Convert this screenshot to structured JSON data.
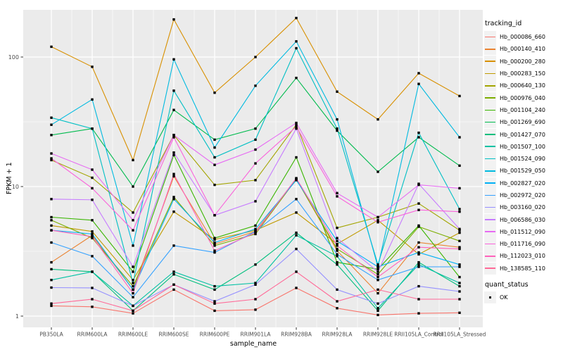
{
  "chart_data": {
    "type": "line",
    "xlabel": "sample_name",
    "ylabel": "FPKM + 1",
    "y_scale": "log10",
    "y_ticks": [
      1,
      10,
      100
    ],
    "y_tick_labels": [
      "1",
      "10",
      "100"
    ],
    "y_minor_ticks": [
      3.162,
      31.62
    ],
    "legend_title": "tracking_id",
    "point_legend": {
      "title": "quant_status",
      "items": [
        "OK"
      ],
      "marker": "black-square"
    },
    "panel_bg": "#EBEBEB",
    "grid_color": "#FFFFFF",
    "tick_label_color": "#4D4D4D",
    "tick_color": "#333333",
    "point_color": "#000000",
    "categories": [
      "PB350LA",
      "RRIM600LA",
      "RRIM600LE",
      "RRIM600SE",
      "RRIM600PE",
      "RRIM901LA",
      "RRIM928BA",
      "RRIM928LA",
      "RRIM928LE",
      "RRII105LA_Control",
      "RRII105LA_Stressed"
    ],
    "series": [
      {
        "name": "Hb_000086_660",
        "color": "#F8766D",
        "values": [
          1.2,
          1.18,
          1.05,
          1.6,
          1.1,
          1.12,
          1.65,
          1.15,
          1.02,
          1.05,
          1.06
        ]
      },
      {
        "name": "Hb_000140_410",
        "color": "#EA8331",
        "values": [
          2.6,
          4.2,
          1.6,
          12.0,
          3.6,
          4.5,
          11.5,
          3.2,
          1.5,
          3.7,
          3.4
        ]
      },
      {
        "name": "Hb_000200_280",
        "color": "#D89000",
        "values": [
          120,
          84,
          16,
          195,
          53,
          100,
          200,
          54,
          33,
          75,
          50
        ]
      },
      {
        "name": "Hb_000283_150",
        "color": "#C09B00",
        "values": [
          5.0,
          4.5,
          1.9,
          6.4,
          3.9,
          4.6,
          6.3,
          3.6,
          5.5,
          3.0,
          4.4
        ]
      },
      {
        "name": "Hb_000640_130",
        "color": "#A3A500",
        "values": [
          16.0,
          11.7,
          6.3,
          25.0,
          10.3,
          11.2,
          30.0,
          4.8,
          5.8,
          7.4,
          4.6
        ]
      },
      {
        "name": "Hb_000976_040",
        "color": "#7CAE00",
        "values": [
          5.5,
          4.0,
          1.7,
          8.3,
          3.5,
          4.3,
          11.4,
          3.3,
          2.1,
          4.9,
          3.8
        ]
      },
      {
        "name": "Hb_001104_240",
        "color": "#39B600",
        "values": [
          5.8,
          5.5,
          2.2,
          17.5,
          4.0,
          5.0,
          16.8,
          2.6,
          2.3,
          5.0,
          2.0
        ]
      },
      {
        "name": "Hb_001269_690",
        "color": "#00BB4E",
        "values": [
          25.0,
          28.0,
          10.0,
          39.0,
          23.0,
          28.0,
          69.0,
          27.0,
          13.0,
          24.0,
          14.5
        ]
      },
      {
        "name": "Hb_001427_070",
        "color": "#00BF7D",
        "values": [
          2.3,
          2.2,
          1.1,
          2.1,
          1.6,
          2.5,
          4.4,
          2.5,
          1.1,
          2.6,
          1.7
        ]
      },
      {
        "name": "Hb_001507_100",
        "color": "#00C1A3",
        "values": [
          1.9,
          2.2,
          1.2,
          2.2,
          1.7,
          1.8,
          4.2,
          2.9,
          1.15,
          2.5,
          1.8
        ]
      },
      {
        "name": "Hb_001524_090",
        "color": "#00BFC4",
        "values": [
          34.0,
          28.0,
          1.8,
          55.0,
          16.8,
          23.0,
          117,
          28.0,
          2.5,
          26.0,
          6.7
        ]
      },
      {
        "name": "Hb_001529_050",
        "color": "#00BAE0",
        "values": [
          30.0,
          47.0,
          3.5,
          96.0,
          20.0,
          60.0,
          132,
          33.0,
          2.4,
          62.0,
          24.0
        ]
      },
      {
        "name": "Hb_002827_020",
        "color": "#00B0F6",
        "values": [
          4.6,
          4.3,
          1.6,
          8.0,
          3.7,
          4.7,
          11.2,
          3.8,
          2.4,
          3.1,
          2.5
        ]
      },
      {
        "name": "Hb_002972_020",
        "color": "#35A2FF",
        "values": [
          3.7,
          2.9,
          1.4,
          3.5,
          3.1,
          4.5,
          8.0,
          3.0,
          1.9,
          2.4,
          2.4
        ]
      },
      {
        "name": "Hb_003160_020",
        "color": "#9590FF",
        "values": [
          1.66,
          1.65,
          1.2,
          1.75,
          1.3,
          1.75,
          3.3,
          1.6,
          1.25,
          1.7,
          1.55
        ]
      },
      {
        "name": "Hb_006586_030",
        "color": "#C77CFF",
        "values": [
          8.0,
          7.9,
          2.4,
          18.3,
          6.0,
          7.7,
          28.0,
          4.0,
          2.2,
          10.5,
          4.7
        ]
      },
      {
        "name": "Hb_011512_090",
        "color": "#E76BF3",
        "values": [
          18.0,
          13.5,
          5.5,
          25.0,
          14.7,
          19.3,
          31.0,
          8.9,
          5.8,
          10.3,
          9.7
        ]
      },
      {
        "name": "Hb_011716_090",
        "color": "#FA62DB",
        "values": [
          16.5,
          9.7,
          4.6,
          24.0,
          6.0,
          15.1,
          29.0,
          8.4,
          5.3,
          6.6,
          6.4
        ]
      },
      {
        "name": "Hb_112023_010",
        "color": "#FF62BC",
        "values": [
          4.6,
          4.1,
          1.5,
          12.5,
          3.2,
          4.4,
          11.6,
          3.5,
          2.0,
          3.4,
          3.3
        ]
      },
      {
        "name": "Hb_138585_110",
        "color": "#FF6A98",
        "values": [
          1.25,
          1.35,
          1.1,
          1.75,
          1.25,
          1.35,
          2.2,
          1.3,
          1.6,
          1.35,
          1.35
        ]
      }
    ]
  }
}
